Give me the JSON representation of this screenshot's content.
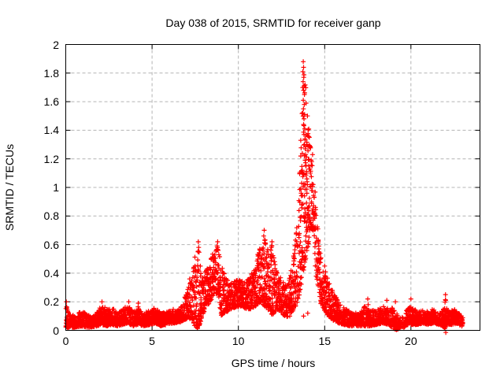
{
  "window": {
    "background": "#ffffff",
    "text_color": "#000000"
  },
  "chart_data": {
    "type": "scatter",
    "title": "Day 038 of 2015, SRMTID for receiver ganp",
    "xlabel": "GPS time / hours",
    "ylabel": "SRMTID / TECUs",
    "xlim": [
      0,
      24
    ],
    "ylim": [
      0,
      2
    ],
    "xticks": {
      "values": [
        0,
        5,
        10,
        15,
        20
      ],
      "labels": [
        "0",
        "5",
        "10",
        "15",
        "20"
      ]
    },
    "yticks": {
      "values": [
        0,
        0.2,
        0.4,
        0.6,
        0.8,
        1,
        1.2,
        1.4,
        1.6,
        1.8,
        2
      ],
      "labels": [
        "0",
        "0.2",
        "0.4",
        "0.6",
        "0.8",
        "1",
        "1.2",
        "1.4",
        "1.6",
        "1.8",
        "2"
      ]
    },
    "grid": {
      "show": true,
      "style": "dashed",
      "color": "#b4b4b4"
    },
    "border_color": "#000000",
    "legend": "none",
    "series": [
      {
        "name": "SRMTID",
        "marker": "plus",
        "marker_size": 7,
        "color": "#ff0000",
        "x_start": 0.0,
        "x_end": 23.0,
        "envelope": [
          [
            0.0,
            0.02,
            0.2
          ],
          [
            0.1,
            0.02,
            0.14
          ],
          [
            0.5,
            0.02,
            0.1
          ],
          [
            0.9,
            0.03,
            0.14
          ],
          [
            1.2,
            0.02,
            0.12
          ],
          [
            1.5,
            0.02,
            0.09
          ],
          [
            1.8,
            0.03,
            0.13
          ],
          [
            2.1,
            0.04,
            0.18
          ],
          [
            2.4,
            0.03,
            0.15
          ],
          [
            2.7,
            0.04,
            0.16
          ],
          [
            3.0,
            0.03,
            0.12
          ],
          [
            3.3,
            0.04,
            0.15
          ],
          [
            3.6,
            0.05,
            0.18
          ],
          [
            3.9,
            0.03,
            0.13
          ],
          [
            4.2,
            0.04,
            0.17
          ],
          [
            4.5,
            0.03,
            0.12
          ],
          [
            4.9,
            0.04,
            0.14
          ],
          [
            5.2,
            0.05,
            0.16
          ],
          [
            5.5,
            0.03,
            0.12
          ],
          [
            5.9,
            0.04,
            0.13
          ],
          [
            6.3,
            0.05,
            0.15
          ],
          [
            6.7,
            0.06,
            0.18
          ],
          [
            7.0,
            0.08,
            0.26
          ],
          [
            7.3,
            0.08,
            0.44
          ],
          [
            7.55,
            0.01,
            0.55
          ],
          [
            7.7,
            0.01,
            0.6
          ],
          [
            7.9,
            0.1,
            0.36
          ],
          [
            8.1,
            0.15,
            0.42
          ],
          [
            8.35,
            0.2,
            0.5
          ],
          [
            8.6,
            0.24,
            0.56
          ],
          [
            8.8,
            0.26,
            0.6
          ],
          [
            9.0,
            0.1,
            0.46
          ],
          [
            9.2,
            0.12,
            0.4
          ],
          [
            9.5,
            0.14,
            0.33
          ],
          [
            9.8,
            0.16,
            0.35
          ],
          [
            10.1,
            0.17,
            0.36
          ],
          [
            10.4,
            0.15,
            0.33
          ],
          [
            10.7,
            0.15,
            0.38
          ],
          [
            11.0,
            0.17,
            0.48
          ],
          [
            11.3,
            0.2,
            0.6
          ],
          [
            11.5,
            0.17,
            0.68
          ],
          [
            11.75,
            0.14,
            0.58
          ],
          [
            11.95,
            0.1,
            0.6
          ],
          [
            12.2,
            0.14,
            0.42
          ],
          [
            12.5,
            0.12,
            0.36
          ],
          [
            12.8,
            0.09,
            0.32
          ],
          [
            13.0,
            0.12,
            0.4
          ],
          [
            13.2,
            0.14,
            0.52
          ],
          [
            13.45,
            0.2,
            0.8
          ],
          [
            13.6,
            0.28,
            1.25,
            1.3
          ],
          [
            13.75,
            0.4,
            1.85,
            1.4
          ],
          [
            13.9,
            0.5,
            1.72,
            1.4
          ],
          [
            14.05,
            0.6,
            1.45,
            1.3
          ],
          [
            14.2,
            0.72,
            1.28
          ],
          [
            14.35,
            0.68,
            1.05
          ],
          [
            14.5,
            0.38,
            0.95
          ],
          [
            14.65,
            0.28,
            0.62
          ],
          [
            14.8,
            0.18,
            0.5
          ],
          [
            15.0,
            0.13,
            0.44
          ],
          [
            15.2,
            0.1,
            0.35
          ],
          [
            15.5,
            0.07,
            0.28
          ],
          [
            15.8,
            0.05,
            0.2
          ],
          [
            16.1,
            0.04,
            0.16
          ],
          [
            16.5,
            0.03,
            0.13
          ],
          [
            17.0,
            0.03,
            0.12
          ],
          [
            17.4,
            0.03,
            0.18
          ],
          [
            17.6,
            0.03,
            0.14
          ],
          [
            18.0,
            0.04,
            0.14
          ],
          [
            18.4,
            0.05,
            0.17
          ],
          [
            18.7,
            0.04,
            0.15
          ],
          [
            19.0,
            0.01,
            0.16
          ],
          [
            19.15,
            0.0,
            0.12
          ],
          [
            19.35,
            0.02,
            0.09,
            0.5
          ],
          [
            19.6,
            0.02,
            0.1,
            0.6
          ],
          [
            19.85,
            0.04,
            0.18
          ],
          [
            20.1,
            0.04,
            0.16
          ],
          [
            20.4,
            0.04,
            0.13
          ],
          [
            20.7,
            0.05,
            0.14
          ],
          [
            21.0,
            0.04,
            0.13
          ],
          [
            21.3,
            0.05,
            0.15
          ],
          [
            21.6,
            0.04,
            0.13
          ],
          [
            21.9,
            0.03,
            0.16
          ],
          [
            22.0,
            0.0,
            0.22,
            1.2
          ],
          [
            22.1,
            0.04,
            0.14
          ],
          [
            22.4,
            0.04,
            0.15
          ],
          [
            22.7,
            0.05,
            0.14
          ],
          [
            22.9,
            0.03,
            0.11
          ],
          [
            23.0,
            0.03,
            0.09
          ]
        ],
        "peak_points": [
          [
            13.76,
            1.88
          ],
          [
            13.78,
            1.84
          ],
          [
            13.74,
            1.81
          ],
          [
            13.79,
            1.77
          ],
          [
            13.75,
            1.74
          ],
          [
            13.81,
            1.71
          ],
          [
            13.78,
            1.68
          ],
          [
            13.83,
            1.65
          ],
          [
            13.76,
            1.61
          ],
          [
            13.82,
            1.58
          ],
          [
            13.77,
            1.55
          ],
          [
            13.84,
            1.51
          ],
          [
            13.8,
            1.48
          ],
          [
            13.78,
            1.44
          ],
          [
            13.85,
            1.41
          ],
          [
            13.8,
            1.37
          ],
          [
            13.86,
            1.34
          ],
          [
            13.83,
            1.3
          ],
          [
            13.88,
            1.27
          ],
          [
            13.9,
            1.23
          ],
          [
            13.87,
            1.19
          ],
          [
            13.92,
            1.15
          ],
          [
            13.95,
            1.1
          ],
          [
            13.97,
            1.06
          ],
          [
            14.0,
            1.02
          ],
          [
            13.7,
            1.12
          ],
          [
            13.67,
            1.03
          ],
          [
            13.64,
            0.96
          ],
          [
            14.3,
            1.23
          ],
          [
            14.25,
            1.18
          ],
          [
            7.68,
            0.62
          ],
          [
            7.7,
            0.58
          ],
          [
            7.66,
            0.55
          ],
          [
            8.8,
            0.62
          ],
          [
            8.77,
            0.59
          ],
          [
            8.83,
            0.56
          ],
          [
            11.5,
            0.7
          ],
          [
            11.47,
            0.66
          ],
          [
            11.53,
            0.63
          ],
          [
            11.95,
            0.62
          ],
          [
            11.92,
            0.58
          ],
          [
            12.98,
            0.1
          ],
          [
            13.2,
            0.52
          ],
          [
            15.0,
            0.45
          ],
          [
            15.05,
            0.41
          ],
          [
            17.5,
            0.22
          ],
          [
            17.52,
            0.18
          ],
          [
            19.1,
            0.2
          ],
          [
            22.0,
            0.25
          ],
          [
            22.02,
            -0.015
          ],
          [
            22.01,
            0.21
          ],
          [
            0.03,
            0.2
          ],
          [
            0.05,
            0.165
          ],
          [
            2.1,
            0.2
          ],
          [
            3.65,
            0.2
          ],
          [
            4.2,
            0.19
          ],
          [
            18.6,
            0.21
          ],
          [
            20.0,
            0.22
          ],
          [
            13.78,
            0.1
          ],
          [
            14.02,
            0.12
          ]
        ],
        "gen": {
          "seed": 38,
          "dt": 0.015,
          "x_jitter": 0.03,
          "pow": 1.5,
          "base_n": 2
        }
      }
    ]
  }
}
